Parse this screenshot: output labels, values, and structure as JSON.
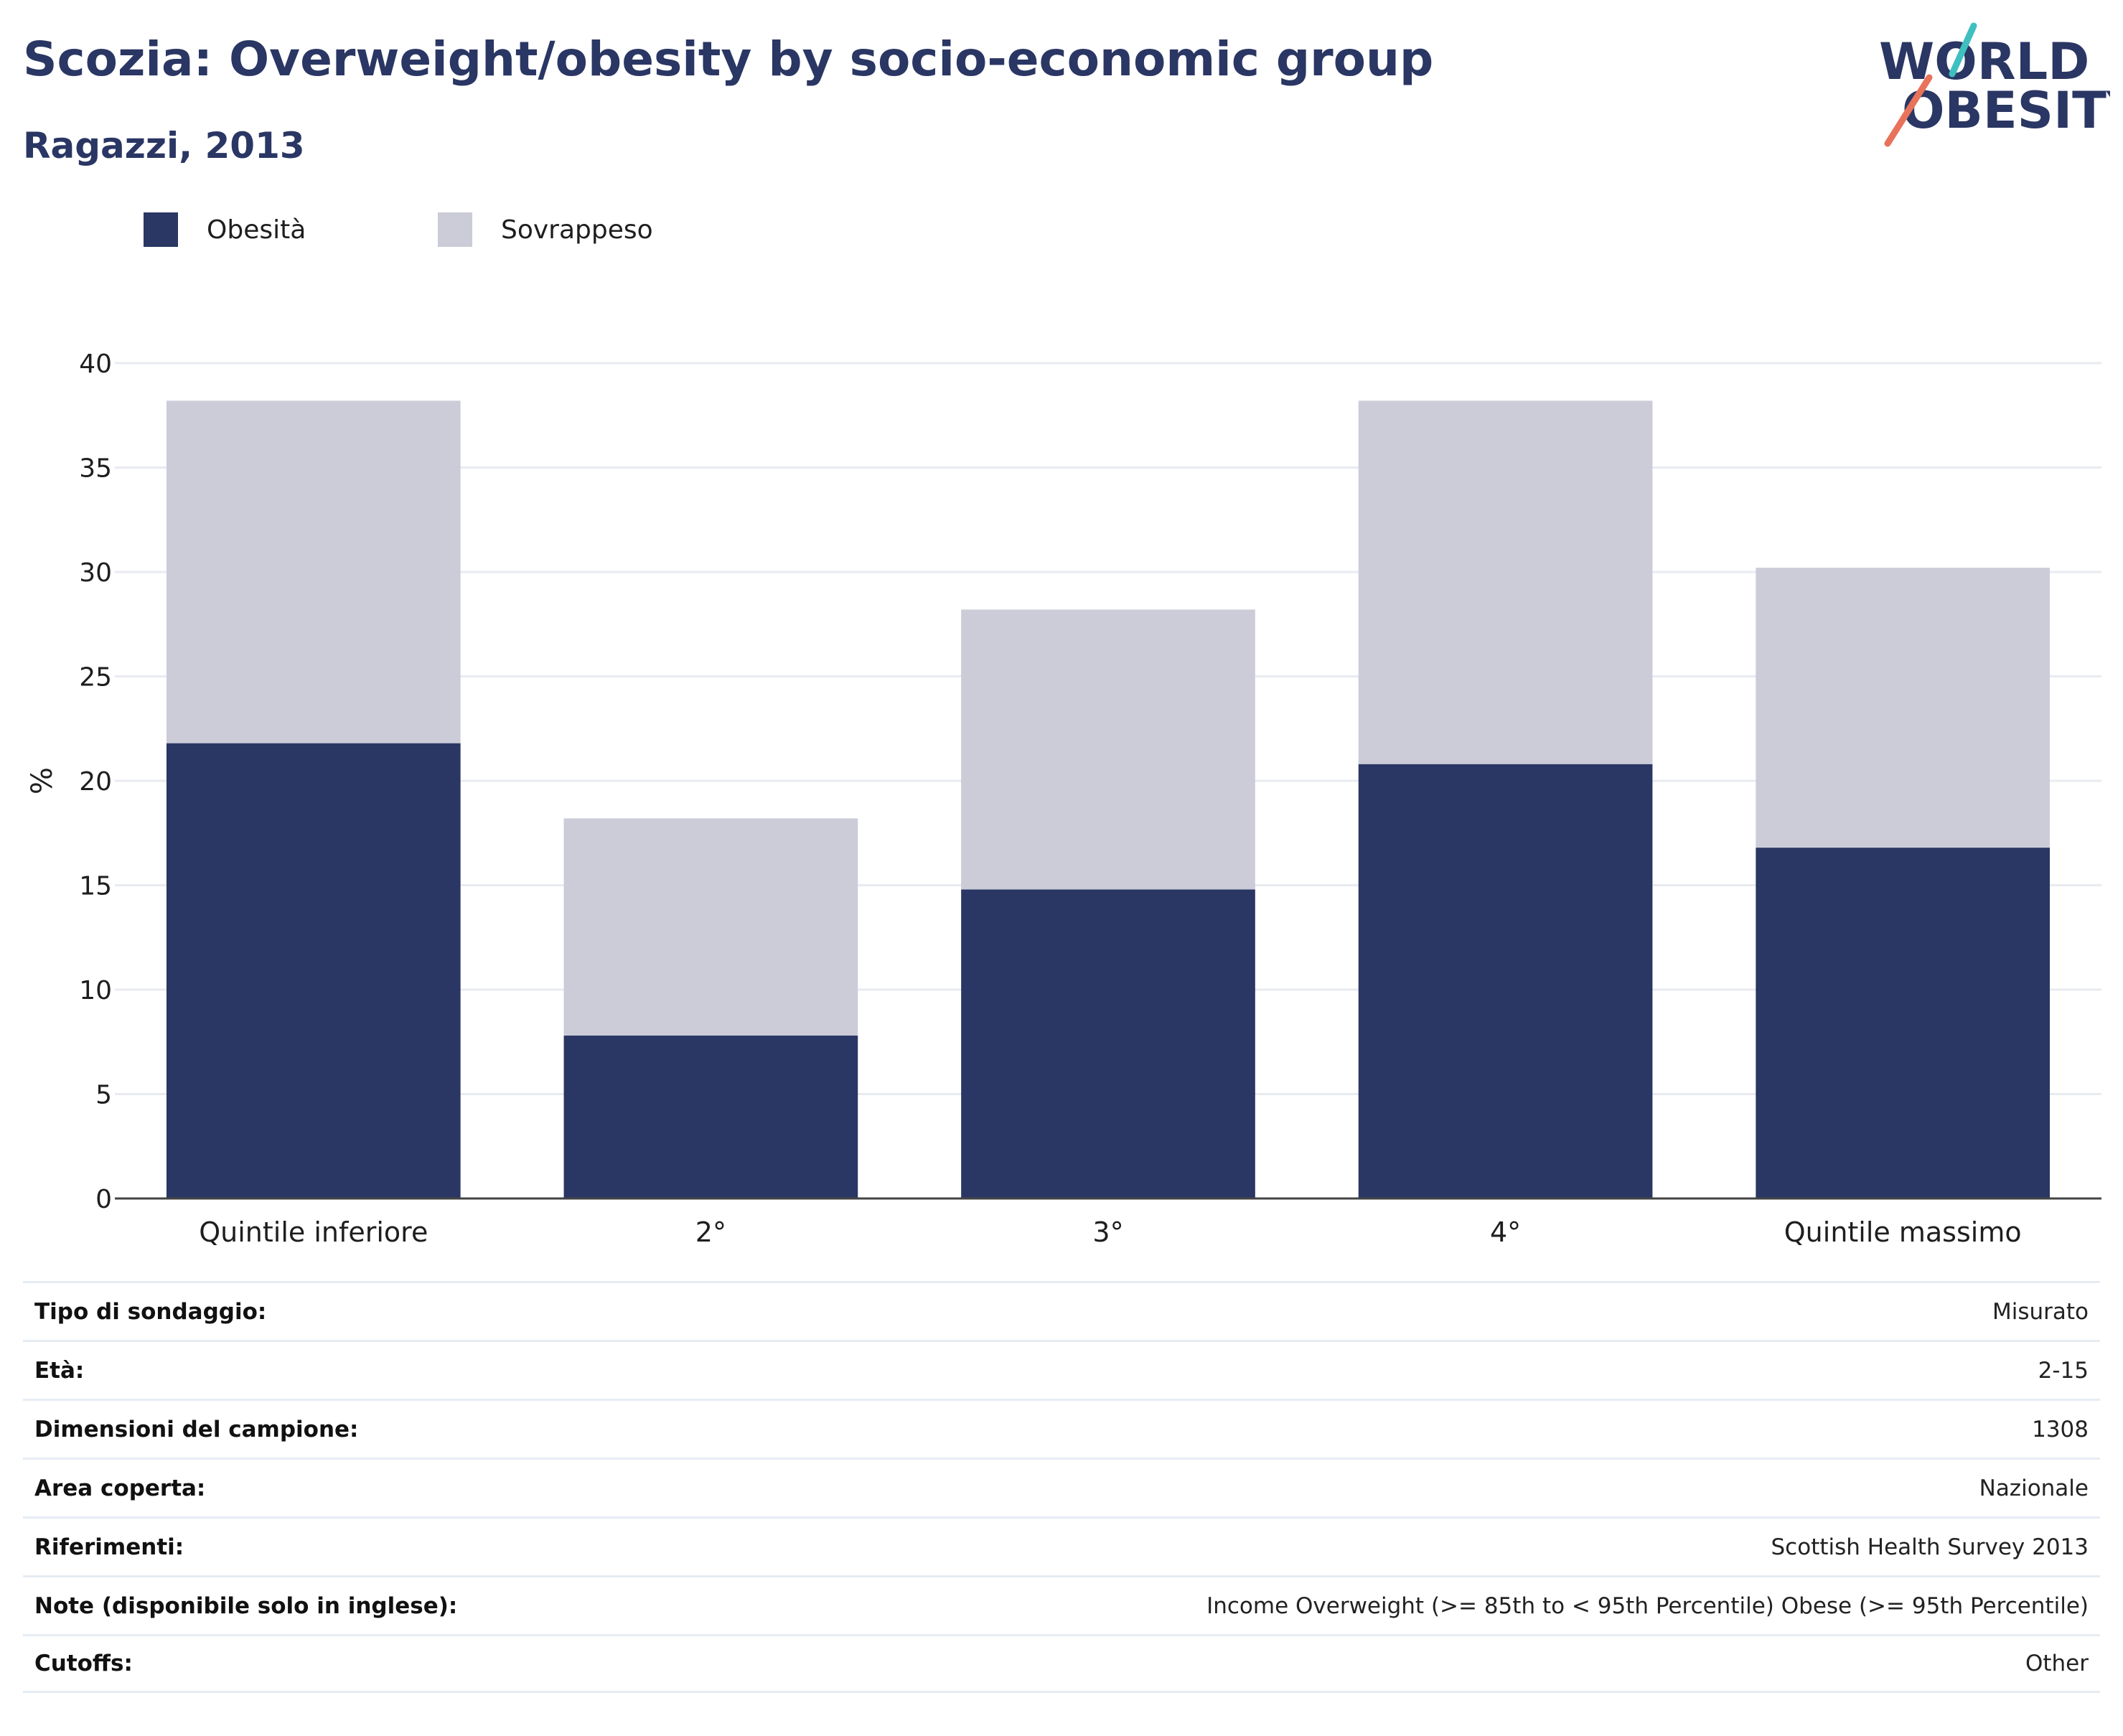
{
  "header": {
    "title": "Scozia: Overweight/obesity by socio-economic group",
    "subtitle": "Ragazzi, 2013"
  },
  "logo": {
    "line1": "WORLD",
    "line2": "OBESITY"
  },
  "colors": {
    "obesity": "#2a3663",
    "overweight": "#cbccd8",
    "title": "#2a3663",
    "logo_teal": "#3fbfbf",
    "logo_coral": "#e8735a"
  },
  "chart_data": {
    "type": "bar",
    "stacked": true,
    "categories": [
      "Quintile inferiore",
      "2°",
      "3°",
      "4°",
      "Quintile massimo"
    ],
    "series": [
      {
        "name": "Obesità",
        "values": [
          21.8,
          7.8,
          14.8,
          20.8,
          16.8
        ]
      },
      {
        "name": "Sovrappeso",
        "values": [
          16.4,
          10.4,
          13.4,
          17.4,
          13.4
        ]
      }
    ],
    "ylabel": "%",
    "ylim": [
      0,
      40
    ],
    "yticks": [
      0,
      5,
      10,
      15,
      20,
      25,
      30,
      35,
      40
    ],
    "grid": true,
    "legend": "top-left"
  },
  "meta": [
    {
      "label": "Tipo di sondaggio:",
      "value": "Misurato"
    },
    {
      "label": "Età:",
      "value": "2-15"
    },
    {
      "label": "Dimensioni del campione:",
      "value": "1308"
    },
    {
      "label": "Area coperta:",
      "value": "Nazionale"
    },
    {
      "label": "Riferimenti:",
      "value": "Scottish Health Survey 2013"
    },
    {
      "label": "Note (disponibile solo in inglese):",
      "value": "Income Overweight (>= 85th to < 95th Percentile) Obese (>= 95th Percentile)"
    },
    {
      "label": "Cutoffs:",
      "value": "Other"
    }
  ]
}
